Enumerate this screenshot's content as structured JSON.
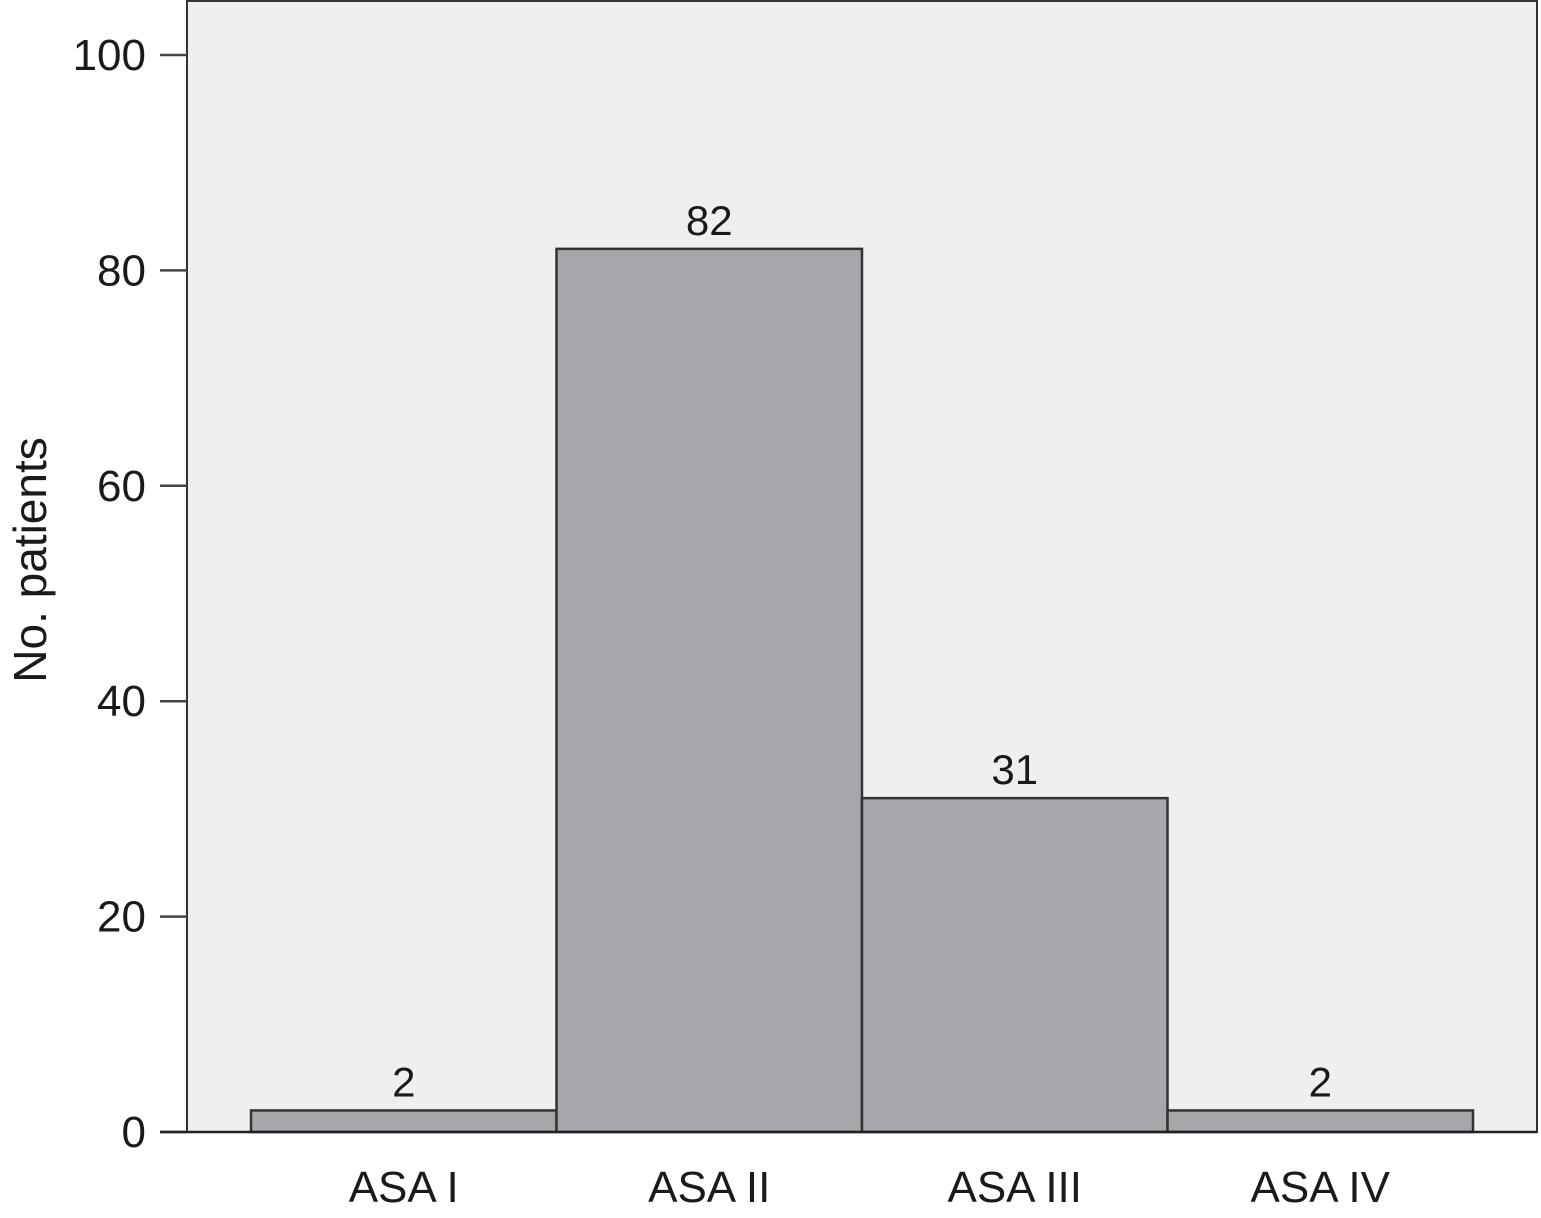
{
  "chart_data": {
    "type": "bar",
    "title": "",
    "xlabel": "",
    "ylabel": "No. patients",
    "categories": [
      "ASA I",
      "ASA II",
      "ASA III",
      "ASA IV"
    ],
    "values": [
      2,
      82,
      31,
      2
    ],
    "data_labels": [
      "2",
      "82",
      "31",
      "2"
    ],
    "ylim": [
      0,
      100
    ],
    "yticks": [
      0,
      20,
      40,
      60,
      80,
      100
    ],
    "grid": false,
    "legend": "none",
    "colors": {
      "bar": "#a6a7ab",
      "plot_background": "#efefef",
      "outline": "#333333"
    }
  }
}
